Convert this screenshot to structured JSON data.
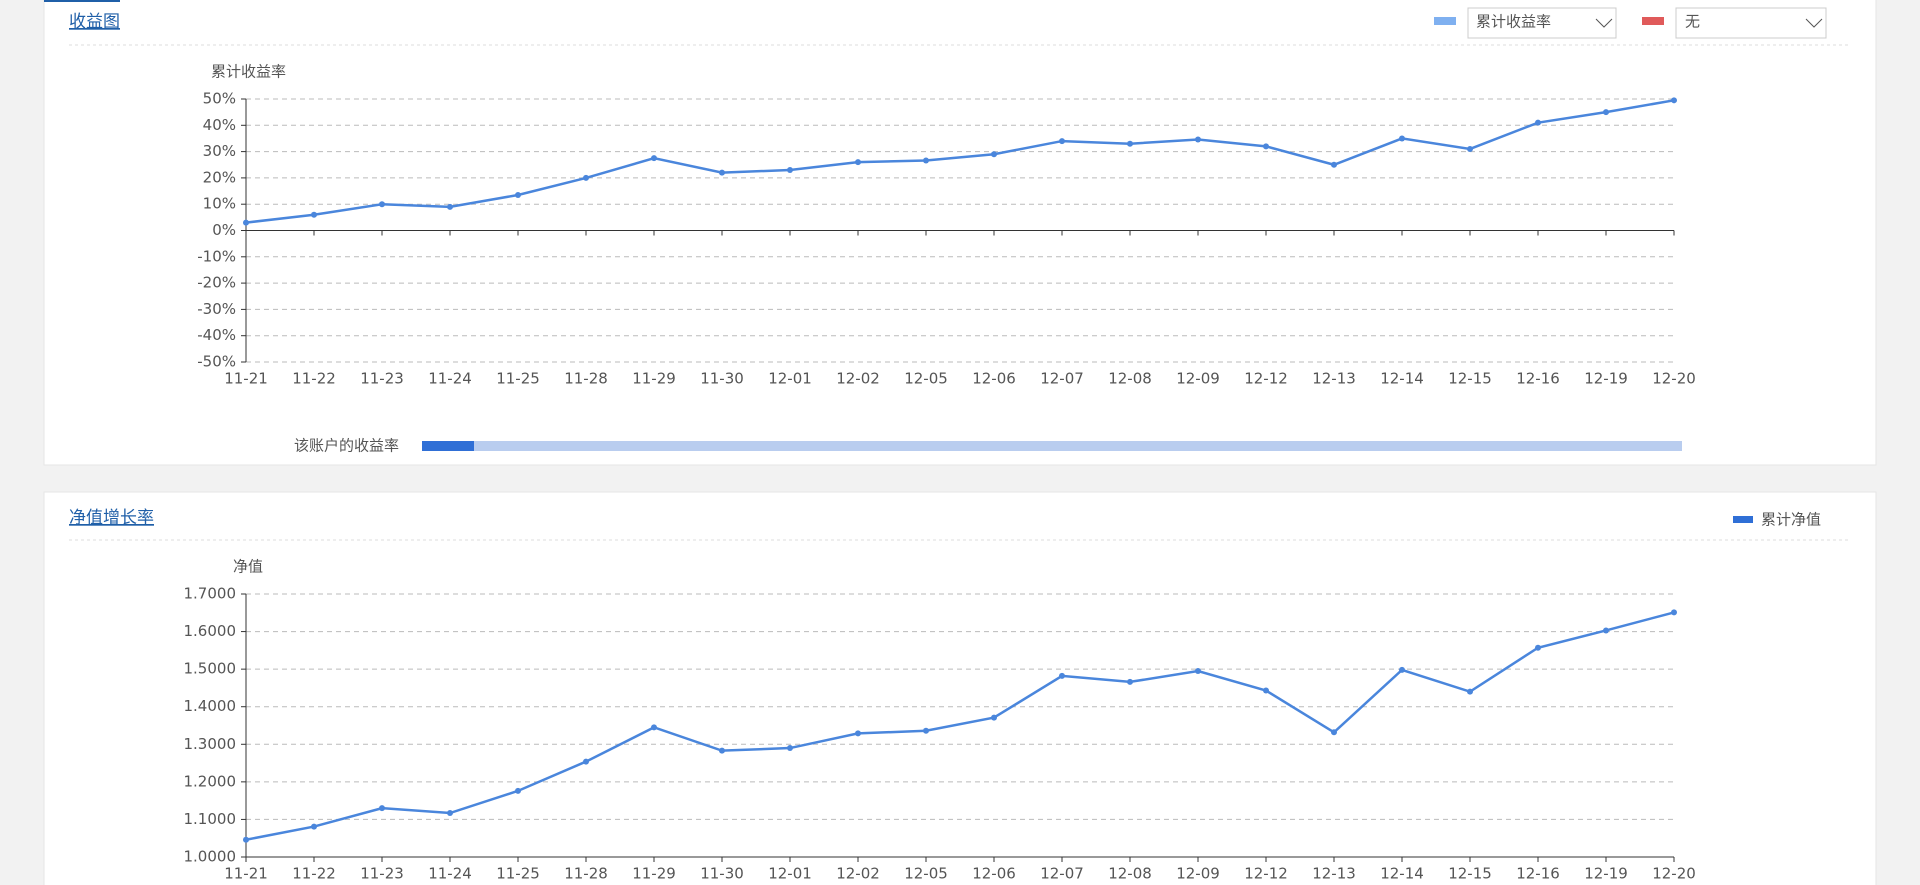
{
  "ui": {
    "panel1_title": "收益图",
    "select2": "无",
    "slider_label": "该账户的收益率",
    "panel2_title": "净值增长率"
  },
  "chart_data": [
    {
      "type": "line",
      "ylabel": "累计收益率",
      "categories": [
        "11-21",
        "11-22",
        "11-23",
        "11-24",
        "11-25",
        "11-28",
        "11-29",
        "11-30",
        "12-01",
        "12-02",
        "12-05",
        "12-06",
        "12-07",
        "12-08",
        "12-09",
        "12-12",
        "12-13",
        "12-14",
        "12-15",
        "12-16",
        "12-19",
        "12-20"
      ],
      "series": [
        {
          "name": "累计收益率",
          "color": "#4a86dc",
          "values": [
            3,
            6,
            10,
            9,
            13.5,
            20,
            27.5,
            22,
            23,
            26,
            26.6,
            29,
            34,
            33,
            34.6,
            32,
            25,
            35,
            31,
            41,
            45,
            49.5
          ]
        }
      ],
      "ylim": [
        -50,
        50
      ],
      "yticks": [
        {
          "value": -50,
          "label": "-50%"
        },
        {
          "value": -40,
          "label": "-40%"
        },
        {
          "value": -30,
          "label": "-30%"
        },
        {
          "value": -20,
          "label": "-20%"
        },
        {
          "value": -10,
          "label": "-10%"
        },
        {
          "value": 0,
          "label": "0%"
        },
        {
          "value": 10,
          "label": "10%"
        },
        {
          "value": 20,
          "label": "20%"
        },
        {
          "value": 30,
          "label": "30%"
        },
        {
          "value": 40,
          "label": "40%"
        },
        {
          "value": 50,
          "label": "50%"
        }
      ],
      "grid": true
    },
    {
      "type": "line",
      "ylabel": "净值",
      "categories": [
        "11-21",
        "11-22",
        "11-23",
        "11-24",
        "11-25",
        "11-28",
        "11-29",
        "11-30",
        "12-01",
        "12-02",
        "12-05",
        "12-06",
        "12-07",
        "12-08",
        "12-09",
        "12-12",
        "12-13",
        "12-14",
        "12-15",
        "12-16",
        "12-19",
        "12-20"
      ],
      "series": [
        {
          "name": "累计净值",
          "color": "#4a86dc",
          "values": [
            1.046,
            1.081,
            1.13,
            1.117,
            1.176,
            1.254,
            1.345,
            1.283,
            1.29,
            1.329,
            1.336,
            1.371,
            1.482,
            1.466,
            1.495,
            1.443,
            1.332,
            1.498,
            1.44,
            1.557,
            1.603,
            1.651
          ]
        }
      ],
      "ylim": [
        1,
        1.7
      ],
      "yticks": [
        {
          "value": 1,
          "label": "1.0000"
        },
        {
          "value": 1.1,
          "label": "1.1000"
        },
        {
          "value": 1.2,
          "label": "1.2000"
        },
        {
          "value": 1.3,
          "label": "1.3000"
        },
        {
          "value": 1.4,
          "label": "1.4000"
        },
        {
          "value": 1.5,
          "label": "1.5000"
        },
        {
          "value": 1.6,
          "label": "1.6000"
        },
        {
          "value": 1.7,
          "label": "1.7000"
        }
      ],
      "grid": true
    }
  ]
}
